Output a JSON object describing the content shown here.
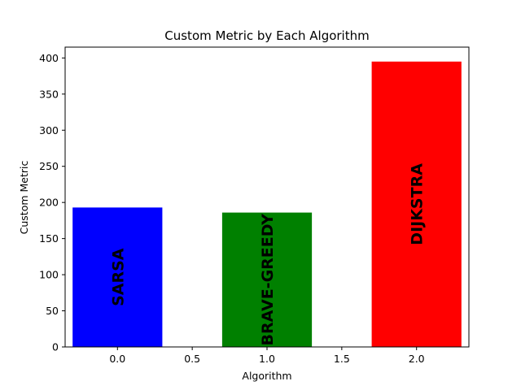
{
  "chart_data": {
    "type": "bar",
    "title": "Custom Metric by Each Algorithm",
    "xlabel": "Algorithm",
    "ylabel": "Custom Metric",
    "x": [
      0,
      1,
      2
    ],
    "values": [
      193,
      186,
      395
    ],
    "bar_labels": [
      "SARSA",
      "BRAVE-GREEDY",
      "DIJKSTRA"
    ],
    "bar_colors": [
      "#0000ff",
      "#008000",
      "#ff0000"
    ],
    "bar_width": 0.6,
    "xlim": [
      -0.35,
      2.35
    ],
    "ylim": [
      0,
      415
    ],
    "xticks": [
      0.0,
      0.5,
      1.0,
      1.5,
      2.0
    ],
    "xtick_labels": [
      "0.0",
      "0.5",
      "1.0",
      "1.5",
      "2.0"
    ],
    "yticks": [
      0,
      50,
      100,
      150,
      200,
      250,
      300,
      350,
      400
    ],
    "ytick_labels": [
      "0",
      "50",
      "100",
      "150",
      "200",
      "250",
      "300",
      "350",
      "400"
    ],
    "grid": false,
    "legend": "none"
  }
}
